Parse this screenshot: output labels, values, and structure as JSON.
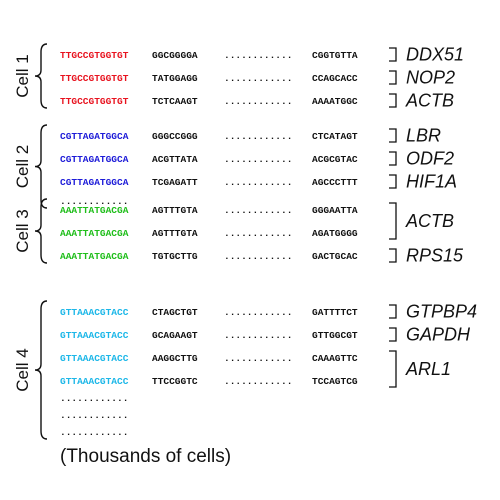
{
  "groups": [
    {
      "label": "Cell 1",
      "barcode_color": "#e8131f",
      "rows": [
        {
          "barcode": "TTGCCGTGGTGT",
          "seq_start": "GGCGGGGA",
          "gap": "............",
          "seq_end": "CGGTGTTA",
          "gene": "DDX51"
        },
        {
          "barcode": "TTGCCGTGGTGT",
          "seq_start": "TATGGAGG",
          "gap": "............",
          "seq_end": "CCAGCACC",
          "gene": "NOP2"
        },
        {
          "barcode": "TTGCCGTGGTGT",
          "seq_start": "TCTCAAGT",
          "gap": "............",
          "seq_end": "AAAATGGC",
          "gene": "ACTB"
        }
      ],
      "extra_dots": []
    },
    {
      "label": "Cell 2",
      "barcode_color": "#1d1bd8",
      "rows": [
        {
          "barcode": "CGTTAGATGGCA",
          "seq_start": "GGGCCGGG",
          "gap": "............",
          "seq_end": "CTCATAGT",
          "gene": "LBR"
        },
        {
          "barcode": "CGTTAGATGGCA",
          "seq_start": "ACGTTATA",
          "gap": "............",
          "seq_end": "ACGCGTAC",
          "gene": "ODF2"
        },
        {
          "barcode": "CGTTAGATGGCA",
          "seq_start": "TCGAGATT",
          "gap": "............",
          "seq_end": "AGCCCTTT",
          "gene": "HIF1A"
        }
      ],
      "extra_dots": [
        "............"
      ]
    },
    {
      "label": "Cell 3",
      "barcode_color": "#1fbe1a",
      "rows": [
        {
          "barcode": "AAATTATGACGA",
          "seq_start": "AGTTTGTA",
          "gap": "............",
          "seq_end": "GGGAATTA"
        },
        {
          "barcode": "AAATTATGACGA",
          "seq_start": "AGTTTGTA",
          "gap": "............",
          "seq_end": "AGATGGGG"
        },
        {
          "barcode": "AAATTATGACGA",
          "seq_start": "TGTGCTTG",
          "gap": "............",
          "seq_end": "GACTGCAC"
        }
      ],
      "genes": [
        "ACTB",
        "RPS15"
      ],
      "extra_dots": []
    },
    {
      "label": "Cell 4",
      "barcode_color": "#1cb7e8",
      "rows": [
        {
          "barcode": "GTTAAACGTACC",
          "seq_start": "CTAGCTGT",
          "gap": "............",
          "seq_end": "GATTTTCT"
        },
        {
          "barcode": "GTTAAACGTACC",
          "seq_start": "GCAGAAGT",
          "gap": "............",
          "seq_end": "GTTGGCGT"
        },
        {
          "barcode": "GTTAAACGTACC",
          "seq_start": "AAGGCTTG",
          "gap": "............",
          "seq_end": "CAAAGTTC"
        },
        {
          "barcode": "GTTAAACGTACC",
          "seq_start": "TTCCGGTC",
          "gap": "............",
          "seq_end": "TCCAGTCG"
        }
      ],
      "genes": [
        "GTPBP4",
        "GAPDH",
        "ARL1"
      ],
      "extra_dots": [
        "............",
        "............",
        "............"
      ]
    }
  ],
  "caption": "(Thousands of cells)"
}
